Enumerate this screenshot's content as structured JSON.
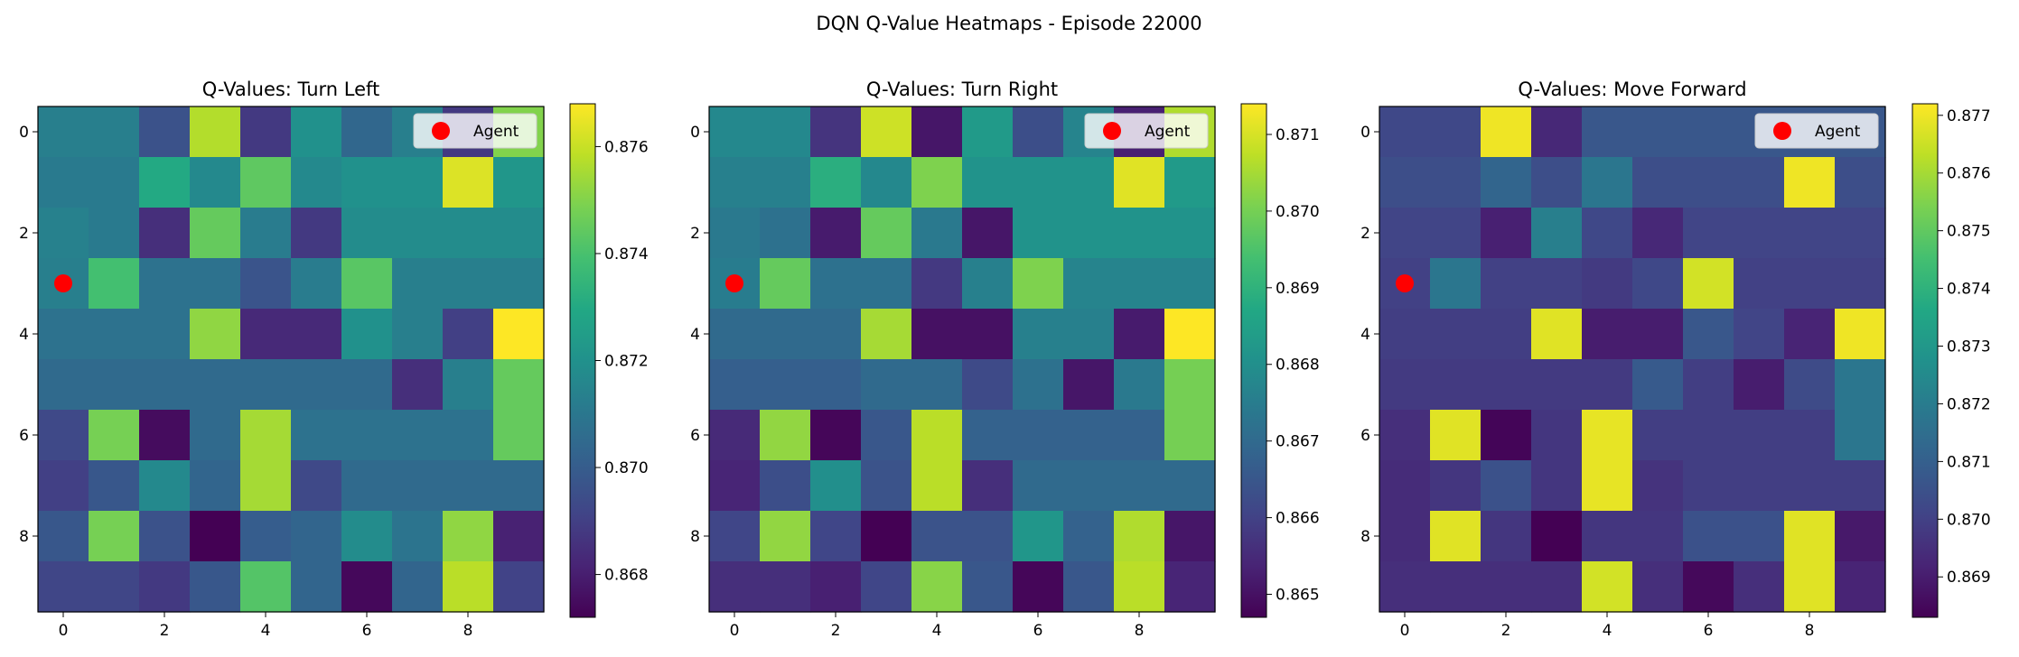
{
  "figure": {
    "title": "DQN Q-Value Heatmaps - Episode 22000"
  },
  "chart_data": [
    {
      "type": "heatmap",
      "title": "Q-Values: Turn Left",
      "xlabel": "",
      "ylabel": "",
      "xticks": [
        0,
        2,
        4,
        6,
        8
      ],
      "yticks": [
        0,
        2,
        4,
        6,
        8
      ],
      "colormap": "viridis",
      "colorbar": {
        "min": 0.8672,
        "max": 0.8768,
        "ticks": [
          0.868,
          0.87,
          0.872,
          0.874,
          0.876
        ],
        "tick_labels": [
          "0.868",
          "0.870",
          "0.872",
          "0.874",
          "0.876"
        ]
      },
      "values": [
        [
          0.8713,
          0.8713,
          0.8696,
          0.8757,
          0.8688,
          0.872,
          0.8704,
          0.8713,
          0.8688,
          0.875
        ],
        [
          0.8711,
          0.8711,
          0.873,
          0.8717,
          0.8744,
          0.8717,
          0.872,
          0.872,
          0.8763,
          0.8722
        ],
        [
          0.8714,
          0.8711,
          0.8685,
          0.8745,
          0.8712,
          0.8688,
          0.8718,
          0.8718,
          0.8718,
          0.8718
        ],
        [
          0.8713,
          0.8739,
          0.8708,
          0.8708,
          0.8697,
          0.8712,
          0.8743,
          0.8713,
          0.8713,
          0.8713
        ],
        [
          0.8708,
          0.8708,
          0.8708,
          0.8752,
          0.8683,
          0.8683,
          0.872,
          0.8713,
          0.869,
          0.8768
        ],
        [
          0.8705,
          0.8705,
          0.8705,
          0.8705,
          0.8705,
          0.8705,
          0.8705,
          0.8685,
          0.8713,
          0.8745
        ],
        [
          0.8693,
          0.8748,
          0.8675,
          0.8705,
          0.8755,
          0.8708,
          0.8708,
          0.8708,
          0.8708,
          0.8745
        ],
        [
          0.869,
          0.8698,
          0.8717,
          0.8703,
          0.8755,
          0.8693,
          0.8705,
          0.8705,
          0.8705,
          0.8705
        ],
        [
          0.8698,
          0.8748,
          0.8696,
          0.8672,
          0.87,
          0.8703,
          0.8718,
          0.8709,
          0.8752,
          0.8681
        ],
        [
          0.8692,
          0.8692,
          0.8688,
          0.8698,
          0.8742,
          0.8703,
          0.8674,
          0.8703,
          0.8758,
          0.8691
        ]
      ],
      "agent": {
        "label": "Agent",
        "x": 0,
        "y": 3,
        "color": "#ff0000"
      }
    },
    {
      "type": "heatmap",
      "title": "Q-Values: Turn Right",
      "xlabel": "",
      "ylabel": "",
      "xticks": [
        0,
        2,
        4,
        6,
        8
      ],
      "yticks": [
        0,
        2,
        4,
        6,
        8
      ],
      "colormap": "viridis",
      "colorbar": {
        "min": 0.8647,
        "max": 0.8714,
        "ticks": [
          0.865,
          0.866,
          0.867,
          0.868,
          0.869,
          0.87,
          0.871
        ],
        "tick_labels": [
          "0.865",
          "0.866",
          "0.867",
          "0.868",
          "0.869",
          "0.870",
          "0.871"
        ]
      },
      "values": [
        [
          0.8678,
          0.8678,
          0.8657,
          0.8709,
          0.8651,
          0.8683,
          0.8663,
          0.8677,
          0.8653,
          0.8706
        ],
        [
          0.8676,
          0.8676,
          0.8689,
          0.8678,
          0.8701,
          0.8681,
          0.8681,
          0.8681,
          0.8711,
          0.8683
        ],
        [
          0.8674,
          0.8672,
          0.8652,
          0.8698,
          0.8674,
          0.8651,
          0.8681,
          0.8681,
          0.8681,
          0.8681
        ],
        [
          0.8675,
          0.8698,
          0.8672,
          0.8672,
          0.8658,
          0.8676,
          0.8701,
          0.8677,
          0.8677,
          0.8677
        ],
        [
          0.867,
          0.867,
          0.867,
          0.8705,
          0.865,
          0.865,
          0.8676,
          0.8676,
          0.8652,
          0.8714
        ],
        [
          0.8667,
          0.8667,
          0.8667,
          0.867,
          0.867,
          0.8662,
          0.8672,
          0.8651,
          0.8674,
          0.87
        ],
        [
          0.8655,
          0.8703,
          0.8648,
          0.8665,
          0.8707,
          0.8668,
          0.8668,
          0.8668,
          0.8668,
          0.87
        ],
        [
          0.8654,
          0.8663,
          0.868,
          0.8664,
          0.8707,
          0.8656,
          0.867,
          0.867,
          0.867,
          0.867
        ],
        [
          0.8661,
          0.8703,
          0.8661,
          0.8647,
          0.8664,
          0.8664,
          0.8682,
          0.8668,
          0.8706,
          0.8651
        ],
        [
          0.8656,
          0.8656,
          0.8653,
          0.8661,
          0.8702,
          0.8665,
          0.8648,
          0.8665,
          0.8707,
          0.8654
        ]
      ],
      "agent": {
        "label": "Agent",
        "x": 0,
        "y": 3,
        "color": "#ff0000"
      }
    },
    {
      "type": "heatmap",
      "title": "Q-Values: Move Forward",
      "xlabel": "",
      "ylabel": "",
      "xticks": [
        0,
        2,
        4,
        6,
        8
      ],
      "yticks": [
        0,
        2,
        4,
        6,
        8
      ],
      "colormap": "viridis",
      "colorbar": {
        "min": 0.8683,
        "max": 0.8772,
        "ticks": [
          0.869,
          0.87,
          0.871,
          0.872,
          0.873,
          0.874,
          0.875,
          0.876,
          0.877
        ],
        "tick_labels": [
          "0.869",
          "0.870",
          "0.871",
          "0.872",
          "0.873",
          "0.874",
          "0.875",
          "0.876",
          "0.877"
        ]
      },
      "values": [
        [
          0.8702,
          0.8702,
          0.877,
          0.8693,
          0.8707,
          0.8707,
          0.8707,
          0.8707,
          0.8707,
          0.8707
        ],
        [
          0.8704,
          0.8704,
          0.8712,
          0.8704,
          0.8718,
          0.8704,
          0.8704,
          0.8704,
          0.877,
          0.8704
        ],
        [
          0.8701,
          0.8701,
          0.8691,
          0.8721,
          0.8702,
          0.8693,
          0.8701,
          0.8701,
          0.8701,
          0.8701
        ],
        [
          0.87,
          0.8718,
          0.87,
          0.87,
          0.8698,
          0.8702,
          0.8766,
          0.87,
          0.87,
          0.87
        ],
        [
          0.8699,
          0.8699,
          0.8699,
          0.8768,
          0.869,
          0.869,
          0.8707,
          0.8701,
          0.8692,
          0.877
        ],
        [
          0.8698,
          0.8698,
          0.8698,
          0.8698,
          0.8698,
          0.8708,
          0.8699,
          0.869,
          0.8703,
          0.8718
        ],
        [
          0.8695,
          0.8768,
          0.8684,
          0.8697,
          0.8769,
          0.8699,
          0.8699,
          0.8699,
          0.8699,
          0.8718
        ],
        [
          0.8694,
          0.8697,
          0.8705,
          0.8697,
          0.8769,
          0.8696,
          0.8699,
          0.8699,
          0.8699,
          0.8699
        ],
        [
          0.8694,
          0.8768,
          0.8697,
          0.8683,
          0.8697,
          0.8697,
          0.8705,
          0.8705,
          0.8768,
          0.8689
        ],
        [
          0.8695,
          0.8695,
          0.8695,
          0.8695,
          0.8766,
          0.8695,
          0.8685,
          0.8695,
          0.8768,
          0.8692
        ]
      ],
      "agent": {
        "label": "Agent",
        "x": 0,
        "y": 3,
        "color": "#ff0000"
      }
    }
  ]
}
